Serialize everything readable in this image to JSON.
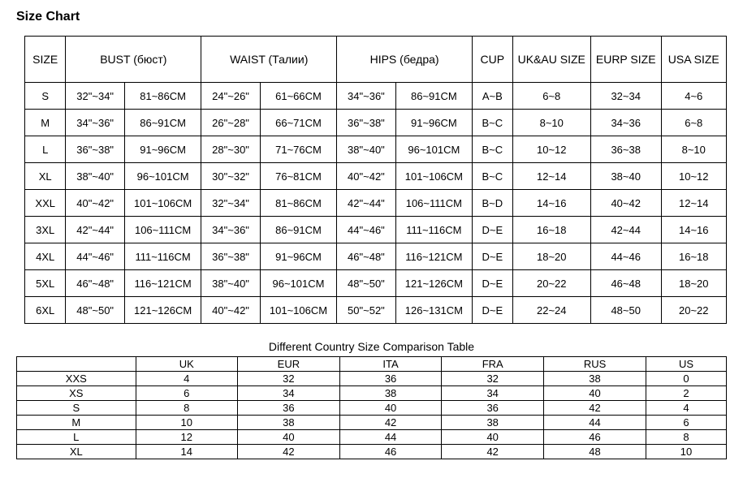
{
  "title": "Size Chart",
  "mainHeaders": {
    "size": "SIZE",
    "bust": "BUST (бюст)",
    "waist": "WAIST (Талии)",
    "hips": "HIPS (бедра)",
    "cup": "CUP",
    "uk": "UK&AU SIZE",
    "eurp": "EURP SIZE",
    "usa": "USA SIZE"
  },
  "rows": [
    {
      "size": "S",
      "bin": "32\"~34\"",
      "bcm": "81~86CM",
      "win": "24\"~26\"",
      "wcm": "61~66CM",
      "hin": "34\"~36\"",
      "hcm": "86~91CM",
      "cup": "A~B",
      "uk": "6~8",
      "eurp": "32~34",
      "usa": "4~6"
    },
    {
      "size": "M",
      "bin": "34\"~36\"",
      "bcm": "86~91CM",
      "win": "26\"~28\"",
      "wcm": "66~71CM",
      "hin": "36\"~38\"",
      "hcm": "91~96CM",
      "cup": "B~C",
      "uk": "8~10",
      "eurp": "34~36",
      "usa": "6~8"
    },
    {
      "size": "L",
      "bin": "36\"~38\"",
      "bcm": "91~96CM",
      "win": "28\"~30\"",
      "wcm": "71~76CM",
      "hin": "38\"~40\"",
      "hcm": "96~101CM",
      "cup": "B~C",
      "uk": "10~12",
      "eurp": "36~38",
      "usa": "8~10"
    },
    {
      "size": "XL",
      "bin": "38\"~40\"",
      "bcm": "96~101CM",
      "win": "30\"~32\"",
      "wcm": "76~81CM",
      "hin": "40\"~42\"",
      "hcm": "101~106CM",
      "cup": "B~C",
      "uk": "12~14",
      "eurp": "38~40",
      "usa": "10~12"
    },
    {
      "size": "XXL",
      "bin": "40\"~42\"",
      "bcm": "101~106CM",
      "win": "32\"~34\"",
      "wcm": "81~86CM",
      "hin": "42\"~44\"",
      "hcm": "106~111CM",
      "cup": "B~D",
      "uk": "14~16",
      "eurp": "40~42",
      "usa": "12~14"
    },
    {
      "size": "3XL",
      "bin": "42\"~44\"",
      "bcm": "106~111CM",
      "win": "34\"~36\"",
      "wcm": "86~91CM",
      "hin": "44\"~46\"",
      "hcm": "111~116CM",
      "cup": "D~E",
      "uk": "16~18",
      "eurp": "42~44",
      "usa": "14~16"
    },
    {
      "size": "4XL",
      "bin": "44\"~46\"",
      "bcm": "111~116CM",
      "win": "36\"~38\"",
      "wcm": "91~96CM",
      "hin": "46\"~48\"",
      "hcm": "116~121CM",
      "cup": "D~E",
      "uk": "18~20",
      "eurp": "44~46",
      "usa": "16~18"
    },
    {
      "size": "5XL",
      "bin": "46\"~48\"",
      "bcm": "116~121CM",
      "win": "38\"~40\"",
      "wcm": "96~101CM",
      "hin": "48\"~50\"",
      "hcm": "121~126CM",
      "cup": "D~E",
      "uk": "20~22",
      "eurp": "46~48",
      "usa": "18~20"
    },
    {
      "size": "6XL",
      "bin": "48\"~50\"",
      "bcm": "121~126CM",
      "win": "40\"~42\"",
      "wcm": "101~106CM",
      "hin": "50\"~52\"",
      "hcm": "126~131CM",
      "cup": "D~E",
      "uk": "22~24",
      "eurp": "48~50",
      "usa": "20~22"
    }
  ],
  "compTitle": "Different Country Size Comparison Table",
  "compHeaders": [
    "",
    "UK",
    "EUR",
    "ITA",
    "FRA",
    "RUS",
    "US"
  ],
  "compRows": [
    [
      "XXS",
      "4",
      "32",
      "36",
      "32",
      "38",
      "0"
    ],
    [
      "XS",
      "6",
      "34",
      "38",
      "34",
      "40",
      "2"
    ],
    [
      "S",
      "8",
      "36",
      "40",
      "36",
      "42",
      "4"
    ],
    [
      "M",
      "10",
      "38",
      "42",
      "38",
      "44",
      "6"
    ],
    [
      "L",
      "12",
      "40",
      "44",
      "40",
      "46",
      "8"
    ],
    [
      "XL",
      "14",
      "42",
      "46",
      "42",
      "48",
      "10"
    ]
  ]
}
